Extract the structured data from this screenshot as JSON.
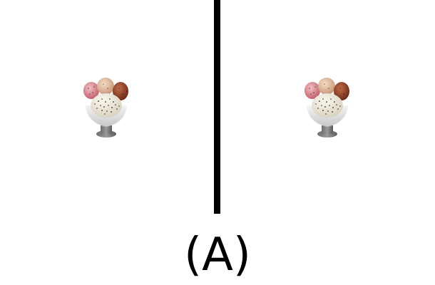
{
  "panels": [
    {
      "icon": "ice-cream-sundae-icon"
    },
    {
      "icon": "ice-cream-sundae-icon"
    }
  ],
  "caption": "(A)"
}
